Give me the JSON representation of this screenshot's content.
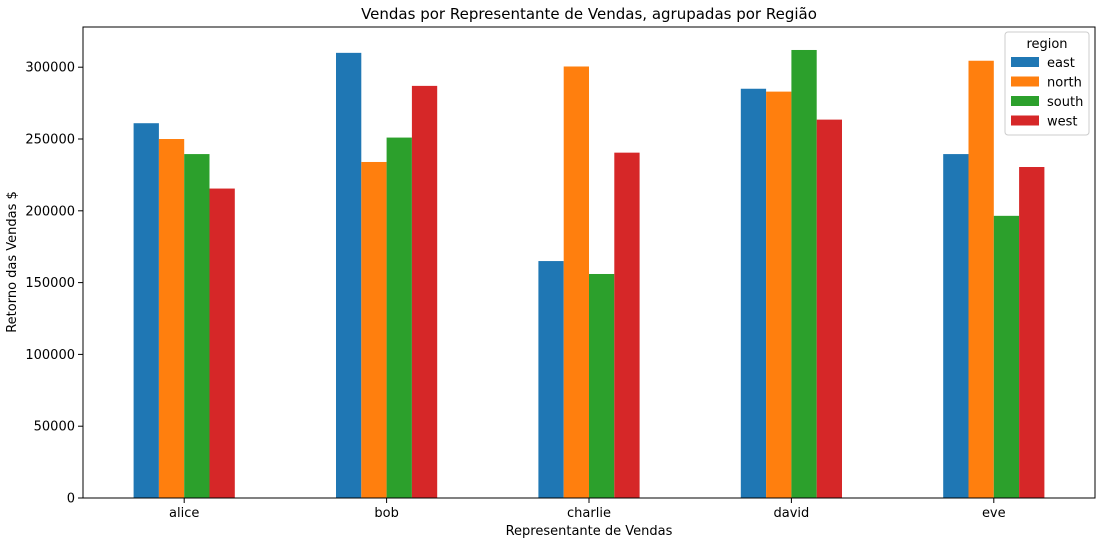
{
  "chart_data": {
    "type": "bar",
    "title": "Vendas por Representante de Vendas, agrupadas por Região",
    "xlabel": "Representante de Vendas",
    "ylabel": "Retorno das Vendas $",
    "categories": [
      "alice",
      "bob",
      "charlie",
      "david",
      "eve"
    ],
    "ylim": [
      0,
      328000
    ],
    "yticks": [
      0,
      50000,
      100000,
      150000,
      200000,
      250000,
      300000
    ],
    "legend": {
      "title": "region",
      "placement": "top-right"
    },
    "series": [
      {
        "name": "east",
        "color": "#1f77b4",
        "values": [
          261000,
          310000,
          165000,
          285000,
          239500
        ]
      },
      {
        "name": "north",
        "color": "#ff7f0e",
        "values": [
          250000,
          234000,
          300500,
          283000,
          304500
        ]
      },
      {
        "name": "south",
        "color": "#2ca02c",
        "values": [
          239500,
          251000,
          156000,
          312000,
          196500
        ]
      },
      {
        "name": "west",
        "color": "#d62728",
        "values": [
          215500,
          287000,
          240500,
          263500,
          230500
        ]
      }
    ]
  }
}
